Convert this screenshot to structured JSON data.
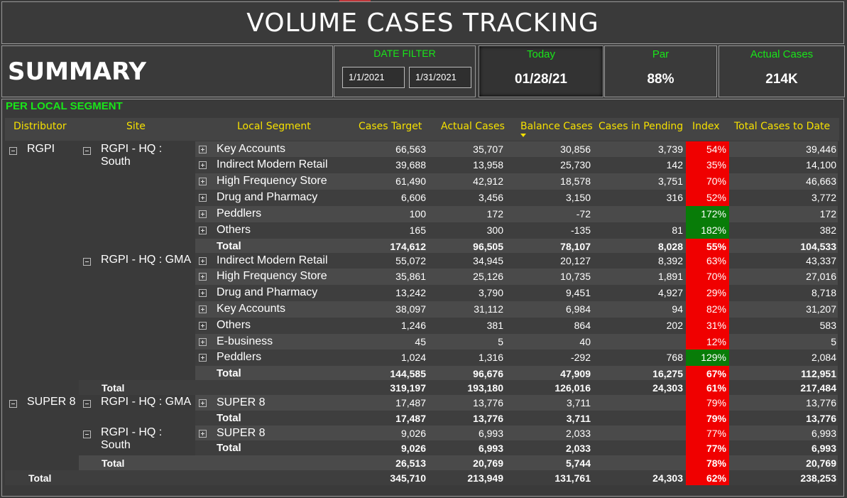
{
  "title": "VOLUME CASES TRACKING",
  "summary_label": "SUMMARY",
  "date_filter": {
    "label": "DATE FILTER",
    "start": "1/1/2021",
    "end": "1/31/2021"
  },
  "kpis": {
    "today": {
      "label": "Today",
      "value": "01/28/21"
    },
    "par": {
      "label": "Par",
      "value": "88%"
    },
    "actual": {
      "label": "Actual Cases",
      "value": "214K"
    }
  },
  "segment_label": "PER LOCAL SEGMENT",
  "headers": [
    "Distributor",
    "Site",
    "Local Segment",
    "Cases Target",
    "Actual Cases",
    "Balance Cases",
    "Cases in Pending",
    "Index",
    "Total Cases to Date"
  ],
  "groups": {
    "rgpi": "RGPI",
    "super8": "SUPER 8",
    "site_south": "RGPI - HQ : South",
    "site_gma": "RGPI - HQ : GMA",
    "site_gma2": "RGPI - HQ : GMA",
    "site_south2": "RGPI - HQ : South"
  },
  "rows": [
    {
      "seg": "Key Accounts",
      "target": "66,563",
      "actual": "35,707",
      "balance": "30,856",
      "pending": "3,739",
      "index": "54%",
      "status": "red",
      "todate": "39,446"
    },
    {
      "seg": "Indirect Modern Retail",
      "target": "39,688",
      "actual": "13,958",
      "balance": "25,730",
      "pending": "142",
      "index": "35%",
      "status": "red",
      "todate": "14,100"
    },
    {
      "seg": "High Frequency Store",
      "target": "61,490",
      "actual": "42,912",
      "balance": "18,578",
      "pending": "3,751",
      "index": "70%",
      "status": "red",
      "todate": "46,663"
    },
    {
      "seg": "Drug and Pharmacy",
      "target": "6,606",
      "actual": "3,456",
      "balance": "3,150",
      "pending": "316",
      "index": "52%",
      "status": "red",
      "todate": "3,772"
    },
    {
      "seg": "Peddlers",
      "target": "100",
      "actual": "172",
      "balance": "-72",
      "pending": "",
      "index": "172%",
      "status": "green",
      "todate": "172"
    },
    {
      "seg": "Others",
      "target": "165",
      "actual": "300",
      "balance": "-135",
      "pending": "81",
      "index": "182%",
      "status": "green",
      "todate": "382"
    },
    {
      "seg": "Total",
      "target": "174,612",
      "actual": "96,505",
      "balance": "78,107",
      "pending": "8,028",
      "index": "55%",
      "status": "red",
      "todate": "104,533",
      "total": true
    },
    {
      "seg": "Indirect Modern Retail",
      "target": "55,072",
      "actual": "34,945",
      "balance": "20,127",
      "pending": "8,392",
      "index": "63%",
      "status": "red",
      "todate": "43,337"
    },
    {
      "seg": "High Frequency Store",
      "target": "35,861",
      "actual": "25,126",
      "balance": "10,735",
      "pending": "1,891",
      "index": "70%",
      "status": "red",
      "todate": "27,016"
    },
    {
      "seg": "Drug and Pharmacy",
      "target": "13,242",
      "actual": "3,790",
      "balance": "9,451",
      "pending": "4,927",
      "index": "29%",
      "status": "red",
      "todate": "8,718"
    },
    {
      "seg": "Key Accounts",
      "target": "38,097",
      "actual": "31,112",
      "balance": "6,984",
      "pending": "94",
      "index": "82%",
      "status": "red",
      "todate": "31,207"
    },
    {
      "seg": "Others",
      "target": "1,246",
      "actual": "381",
      "balance": "864",
      "pending": "202",
      "index": "31%",
      "status": "red",
      "todate": "583"
    },
    {
      "seg": "E-business",
      "target": "45",
      "actual": "5",
      "balance": "40",
      "pending": "",
      "index": "12%",
      "status": "red",
      "todate": "5"
    },
    {
      "seg": "Peddlers",
      "target": "1,024",
      "actual": "1,316",
      "balance": "-292",
      "pending": "768",
      "index": "129%",
      "status": "green",
      "todate": "2,084"
    },
    {
      "seg": "Total",
      "target": "144,585",
      "actual": "96,676",
      "balance": "47,909",
      "pending": "16,275",
      "index": "67%",
      "status": "red",
      "todate": "112,951",
      "total": true
    },
    {
      "sitetotal": "Total",
      "seg": "",
      "target": "319,197",
      "actual": "193,180",
      "balance": "126,016",
      "pending": "24,303",
      "index": "61%",
      "status": "red",
      "todate": "217,484",
      "total": true
    },
    {
      "seg": "SUPER 8",
      "target": "17,487",
      "actual": "13,776",
      "balance": "3,711",
      "pending": "",
      "index": "79%",
      "status": "red",
      "todate": "13,776"
    },
    {
      "seg": "Total",
      "target": "17,487",
      "actual": "13,776",
      "balance": "3,711",
      "pending": "",
      "index": "79%",
      "status": "red",
      "todate": "13,776",
      "total": true
    },
    {
      "seg": "SUPER 8",
      "target": "9,026",
      "actual": "6,993",
      "balance": "2,033",
      "pending": "",
      "index": "77%",
      "status": "red",
      "todate": "6,993"
    },
    {
      "seg": "Total",
      "target": "9,026",
      "actual": "6,993",
      "balance": "2,033",
      "pending": "",
      "index": "77%",
      "status": "red",
      "todate": "6,993",
      "total": true
    },
    {
      "sitetotal": "Total",
      "seg": "",
      "target": "26,513",
      "actual": "20,769",
      "balance": "5,744",
      "pending": "",
      "index": "78%",
      "status": "red",
      "todate": "20,769",
      "total": true
    },
    {
      "grandtotal": "Total",
      "seg": "",
      "target": "345,710",
      "actual": "213,949",
      "balance": "131,761",
      "pending": "24,303",
      "index": "62%",
      "status": "red",
      "todate": "238,253",
      "total": true
    }
  ],
  "colors": {
    "green_label": "#19e619",
    "header_yellow": "#f5e000",
    "index_red": "#f00000",
    "index_green": "#087c08"
  }
}
